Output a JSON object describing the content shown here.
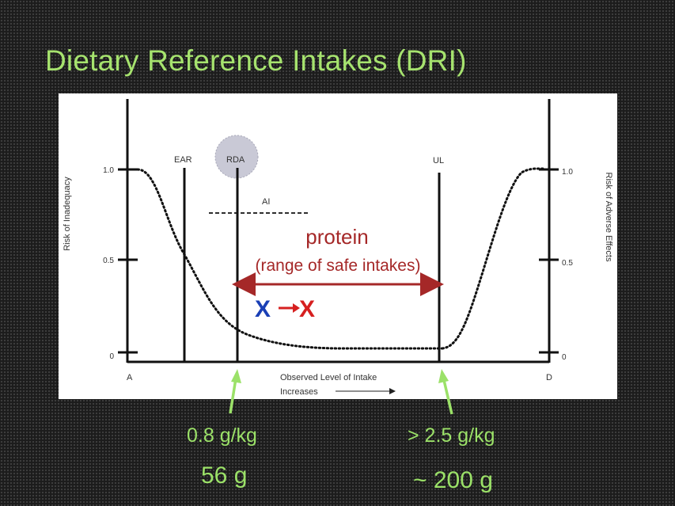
{
  "slide": {
    "title": "Dietary Reference Intakes (DRI)",
    "accent_color": "#a6e36e"
  },
  "diagram": {
    "left_axis_title": "Risk of Inadequacy",
    "right_axis_title": "Risk of Adverse Effects",
    "left_ticks": [
      "1.0",
      "0.5",
      "0"
    ],
    "right_ticks": [
      "1.0",
      "0.5",
      "0"
    ],
    "marker_labels": {
      "ear": "EAR",
      "rda": "RDA",
      "ai": "AI",
      "ul": "UL"
    },
    "corner_labels": {
      "a": "A",
      "d": "D"
    },
    "x_axis_title": "Observed Level of Intake",
    "x_axis_subtitle": "Increases",
    "protein_label": "protein",
    "range_label": "(range of safe intakes)",
    "shift_from": "X",
    "shift_to": "X",
    "colors": {
      "protein": "#a52828",
      "blue_x": "#1a3fb5",
      "red_x": "#d62020",
      "rda_circle": "#c9c9d6"
    }
  },
  "annotations": {
    "rda_value": "0.8 g/kg",
    "rda_grams": "56 g",
    "ul_value": "> 2.5 g/kg",
    "ul_grams": "~ 200 g",
    "arrow_color": "#9be168"
  }
}
